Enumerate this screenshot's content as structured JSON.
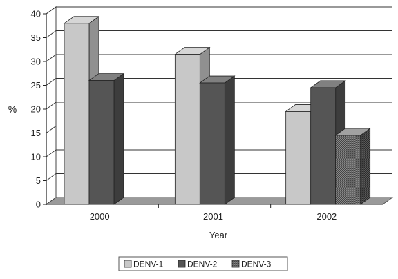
{
  "chart_data": {
    "type": "bar",
    "title": "",
    "xlabel": "Year",
    "ylabel": "%",
    "ylim": [
      0,
      40
    ],
    "yticks": [
      0,
      5,
      10,
      15,
      20,
      25,
      30,
      35,
      40
    ],
    "categories": [
      "2000",
      "2001",
      "2002"
    ],
    "grid": true,
    "three_d": true,
    "legend_position": "bottom",
    "series": [
      {
        "name": "DENV-1",
        "values": [
          38,
          31.5,
          19.5
        ],
        "color": "#c8c8c8",
        "pattern": "solid"
      },
      {
        "name": "DENV-2",
        "values": [
          26,
          25.5,
          24.5
        ],
        "color": "#555555",
        "pattern": "solid"
      },
      {
        "name": "DENV-3",
        "values": [
          0,
          0,
          14.5
        ],
        "color": "#6e6e6e",
        "pattern": "checker"
      }
    ]
  }
}
